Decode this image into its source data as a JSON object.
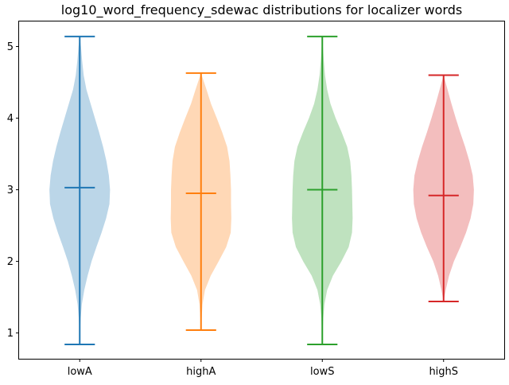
{
  "chart_data": {
    "type": "violin",
    "title": "log10_word_frequency_sdewac distributions for localizer words",
    "xlabel": "",
    "ylabel": "",
    "categories": [
      "lowA",
      "highA",
      "lowS",
      "highS"
    ],
    "ylim": [
      0.64,
      5.35
    ],
    "yticks": [
      1,
      2,
      3,
      4,
      5
    ],
    "grid": false,
    "series": [
      {
        "color": "#1f77b4",
        "min": 0.84,
        "max": 5.14,
        "median": 3.03,
        "density": [
          [
            0.84,
            0.0
          ],
          [
            1.0,
            0.01
          ],
          [
            1.2,
            0.03
          ],
          [
            1.4,
            0.07
          ],
          [
            1.6,
            0.15
          ],
          [
            1.8,
            0.26
          ],
          [
            2.0,
            0.39
          ],
          [
            2.2,
            0.55
          ],
          [
            2.4,
            0.72
          ],
          [
            2.6,
            0.87
          ],
          [
            2.8,
            0.98
          ],
          [
            3.0,
            1.0
          ],
          [
            3.2,
            0.96
          ],
          [
            3.4,
            0.88
          ],
          [
            3.6,
            0.77
          ],
          [
            3.8,
            0.64
          ],
          [
            4.0,
            0.5
          ],
          [
            4.2,
            0.36
          ],
          [
            4.4,
            0.22
          ],
          [
            4.6,
            0.13
          ],
          [
            4.8,
            0.08
          ],
          [
            5.0,
            0.04
          ],
          [
            5.14,
            0.0
          ]
        ]
      },
      {
        "color": "#ff7f0e",
        "min": 1.04,
        "max": 4.63,
        "median": 2.95,
        "density": [
          [
            1.04,
            0.0
          ],
          [
            1.2,
            0.02
          ],
          [
            1.4,
            0.05
          ],
          [
            1.6,
            0.13
          ],
          [
            1.8,
            0.32
          ],
          [
            2.0,
            0.58
          ],
          [
            2.2,
            0.83
          ],
          [
            2.4,
            0.98
          ],
          [
            2.6,
            1.0
          ],
          [
            2.8,
            0.99
          ],
          [
            3.0,
            0.99
          ],
          [
            3.2,
            0.97
          ],
          [
            3.4,
            0.94
          ],
          [
            3.6,
            0.86
          ],
          [
            3.8,
            0.7
          ],
          [
            4.0,
            0.52
          ],
          [
            4.2,
            0.33
          ],
          [
            4.4,
            0.18
          ],
          [
            4.63,
            0.0
          ]
        ]
      },
      {
        "color": "#2ca02c",
        "min": 0.84,
        "max": 5.14,
        "median": 3.0,
        "density": [
          [
            0.84,
            0.0
          ],
          [
            1.0,
            0.01
          ],
          [
            1.2,
            0.03
          ],
          [
            1.4,
            0.07
          ],
          [
            1.6,
            0.16
          ],
          [
            1.8,
            0.35
          ],
          [
            2.0,
            0.63
          ],
          [
            2.2,
            0.87
          ],
          [
            2.4,
            0.98
          ],
          [
            2.6,
            1.0
          ],
          [
            2.8,
            0.99
          ],
          [
            3.0,
            0.98
          ],
          [
            3.2,
            0.96
          ],
          [
            3.4,
            0.92
          ],
          [
            3.6,
            0.82
          ],
          [
            3.8,
            0.64
          ],
          [
            4.0,
            0.44
          ],
          [
            4.2,
            0.27
          ],
          [
            4.4,
            0.16
          ],
          [
            4.6,
            0.09
          ],
          [
            4.8,
            0.05
          ],
          [
            5.0,
            0.02
          ],
          [
            5.14,
            0.0
          ]
        ]
      },
      {
        "color": "#d62728",
        "min": 1.44,
        "max": 4.6,
        "median": 2.92,
        "density": [
          [
            1.44,
            0.0
          ],
          [
            1.6,
            0.07
          ],
          [
            1.8,
            0.18
          ],
          [
            2.0,
            0.34
          ],
          [
            2.2,
            0.55
          ],
          [
            2.4,
            0.74
          ],
          [
            2.6,
            0.89
          ],
          [
            2.8,
            0.98
          ],
          [
            3.0,
            1.0
          ],
          [
            3.2,
            0.96
          ],
          [
            3.4,
            0.85
          ],
          [
            3.6,
            0.71
          ],
          [
            3.8,
            0.55
          ],
          [
            4.0,
            0.4
          ],
          [
            4.2,
            0.26
          ],
          [
            4.4,
            0.13
          ],
          [
            4.6,
            0.0
          ]
        ]
      }
    ]
  }
}
